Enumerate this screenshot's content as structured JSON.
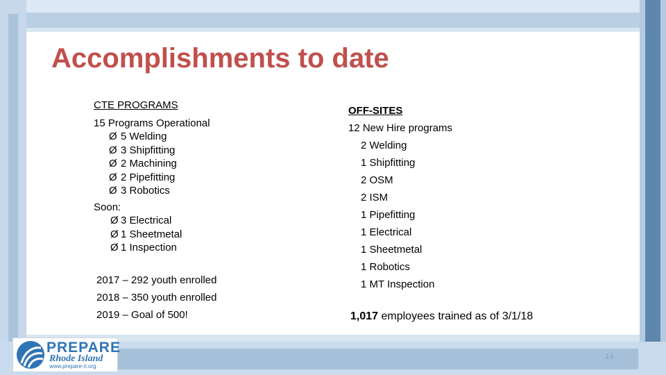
{
  "slide": {
    "title": "Accomplishments to date",
    "page_number": "14"
  },
  "left": {
    "heading": "CTE PROGRAMS",
    "operational": "15 Programs Operational",
    "operational_items": [
      "5 Welding",
      "3 Shipfitting",
      "2 Machining",
      "2 Pipefitting",
      "3 Robotics"
    ],
    "soon_label": "Soon:",
    "soon_items": [
      "3 Electrical",
      "1 Sheetmetal",
      "1 Inspection"
    ],
    "enrollment": [
      "2017 – 292 youth enrolled",
      "2018 – 350 youth enrolled",
      "2019 – Goal of 500!"
    ]
  },
  "right": {
    "heading": "OFF-SITES",
    "new_hire": "12 New Hire programs",
    "items": [
      "2 Welding",
      "1 Shipfitting",
      "2 OSM",
      "2 ISM",
      "1 Pipefitting",
      "1 Electrical",
      "1 Sheetmetal",
      "1 Robotics",
      "1 MT Inspection"
    ],
    "trained_count": "1,017",
    "trained_text": " employees trained as of 3/1/18"
  },
  "logo": {
    "line1": "PREPARE",
    "line2": "Rhode Island",
    "line3": "www.prepare-ri.org"
  },
  "bullet_glyph": "Ø"
}
